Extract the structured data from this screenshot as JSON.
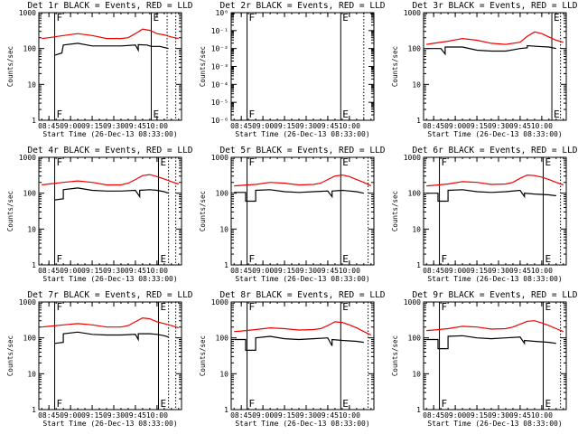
{
  "figure": {
    "background": "#ffffff",
    "axis_color": "#000000"
  },
  "colors": {
    "events": "#000000",
    "lld": "#ee0000",
    "marker": "#000000"
  },
  "chart_data": [
    {
      "type": "line",
      "title": "Det 1r BLACK = Events, RED = LLD",
      "xlabel": "Start Time (26-Dec-13 08:33:00)",
      "ylabel": "Counts/sec",
      "log_y": true,
      "ylim": [
        1,
        1000
      ],
      "yticks": [
        "1",
        "10",
        "100",
        "1000"
      ],
      "xlim": [
        "08:38",
        "10:17"
      ],
      "xticks": [
        "08:45",
        "09:00",
        "09:15",
        "09:30",
        "09:45",
        "10:00"
      ],
      "markers": [
        {
          "label": "F",
          "time": "08:49",
          "style": "solid"
        },
        {
          "label": "E",
          "time": "09:56",
          "style": "solid"
        },
        {
          "label": "",
          "time": "10:07",
          "style": "dotted"
        },
        {
          "label": "",
          "time": "10:13",
          "style": "dotted"
        }
      ],
      "series": [
        {
          "name": "Events",
          "color": "black",
          "x": [
            "08:49",
            "08:54",
            "08:55",
            "09:05",
            "09:15",
            "09:25",
            "09:35",
            "09:45",
            "09:47",
            "09:47",
            "09:53",
            "09:56",
            "10:02",
            "10:08"
          ],
          "y": [
            65,
            75,
            125,
            140,
            118,
            118,
            118,
            125,
            90,
            128,
            125,
            115,
            115,
            100
          ]
        },
        {
          "name": "LLD",
          "color": "red",
          "x": [
            "08:40",
            "08:45",
            "08:55",
            "09:05",
            "09:15",
            "09:25",
            "09:35",
            "09:40",
            "09:45",
            "09:50",
            "09:55",
            "10:00",
            "10:05",
            "10:10",
            "10:15"
          ],
          "y": [
            190,
            200,
            230,
            260,
            230,
            190,
            190,
            200,
            260,
            350,
            320,
            260,
            240,
            210,
            190
          ]
        }
      ]
    },
    {
      "type": "line",
      "title": "Det 2r BLACK = Events, RED = LLD",
      "xlabel": "Start Time (26-Dec-13 08:33:00)",
      "ylabel": "Counts/sec",
      "log_y": true,
      "ylim": [
        1e-06,
        1
      ],
      "yticks": [
        "10⁻⁶",
        "10⁻⁵",
        "10⁻⁴",
        "10⁻³",
        "10⁻²",
        "10⁻¹",
        "10⁰"
      ],
      "xlim": [
        "08:38",
        "10:17"
      ],
      "xticks": [
        "08:45",
        "09:00",
        "09:15",
        "09:30",
        "09:45",
        "10:00"
      ],
      "markers": [
        {
          "label": "F",
          "time": "08:49",
          "style": "solid"
        },
        {
          "label": "E",
          "time": "09:54",
          "style": "solid"
        },
        {
          "label": "",
          "time": "10:10",
          "style": "dotted"
        }
      ],
      "series": []
    },
    {
      "type": "line",
      "title": "Det 3r BLACK = Events, RED = LLD",
      "xlabel": "Start Time (26-Dec-13 08:33:00)",
      "ylabel": "Counts/sec",
      "log_y": true,
      "ylim": [
        1,
        1000
      ],
      "yticks": [
        "1",
        "10",
        "100",
        "1000"
      ],
      "xlim": [
        "08:38",
        "10:17"
      ],
      "xticks": [
        "08:45",
        "09:00",
        "09:15",
        "09:30",
        "09:45",
        "10:00"
      ],
      "markers": [
        {
          "label": "E",
          "time": "10:07",
          "style": "solid"
        },
        {
          "label": "",
          "time": "10:13",
          "style": "dotted"
        }
      ],
      "series": [
        {
          "name": "Events",
          "color": "black",
          "x": [
            "08:40",
            "08:50",
            "08:53",
            "08:53",
            "09:05",
            "09:15",
            "09:25",
            "09:35",
            "09:45",
            "09:50",
            "09:50",
            "09:57",
            "10:05",
            "10:10"
          ],
          "y": [
            100,
            100,
            70,
            110,
            110,
            90,
            85,
            85,
            100,
            105,
            120,
            115,
            110,
            100
          ]
        },
        {
          "name": "LLD",
          "color": "red",
          "x": [
            "08:40",
            "08:45",
            "08:55",
            "09:05",
            "09:15",
            "09:25",
            "09:35",
            "09:45",
            "09:50",
            "09:55",
            "10:00",
            "10:05",
            "10:10",
            "10:15"
          ],
          "y": [
            130,
            140,
            160,
            190,
            170,
            140,
            130,
            150,
            220,
            290,
            260,
            210,
            170,
            150
          ]
        }
      ]
    },
    {
      "type": "line",
      "title": "Det 4r BLACK = Events, RED = LLD",
      "xlabel": "Start Time (26-Dec-13 08:33:00)",
      "ylabel": "Counts/sec",
      "log_y": true,
      "ylim": [
        1,
        1000
      ],
      "yticks": [
        "1",
        "10",
        "100",
        "1000"
      ],
      "xlim": [
        "08:38",
        "10:17"
      ],
      "xticks": [
        "08:45",
        "09:00",
        "09:15",
        "09:30",
        "09:45",
        "10:00"
      ],
      "markers": [
        {
          "label": "F",
          "time": "08:49",
          "style": "solid"
        },
        {
          "label": "E",
          "time": "10:01",
          "style": "solid"
        },
        {
          "label": "",
          "time": "10:08",
          "style": "dotted"
        },
        {
          "label": "",
          "time": "10:13",
          "style": "dotted"
        }
      ],
      "series": [
        {
          "name": "Events",
          "color": "black",
          "x": [
            "08:49",
            "08:55",
            "08:55",
            "09:05",
            "09:15",
            "09:25",
            "09:35",
            "09:45",
            "09:48",
            "09:48",
            "09:55",
            "10:00",
            "10:05",
            "10:08"
          ],
          "y": [
            65,
            70,
            125,
            140,
            120,
            115,
            115,
            120,
            80,
            120,
            125,
            120,
            110,
            100
          ]
        },
        {
          "name": "LLD",
          "color": "red",
          "x": [
            "08:40",
            "08:45",
            "08:55",
            "09:05",
            "09:15",
            "09:25",
            "09:35",
            "09:40",
            "09:45",
            "09:50",
            "09:55",
            "10:00",
            "10:05",
            "10:10",
            "10:15"
          ],
          "y": [
            170,
            180,
            200,
            220,
            200,
            170,
            170,
            190,
            240,
            310,
            330,
            290,
            250,
            210,
            180
          ]
        }
      ]
    },
    {
      "type": "line",
      "title": "Det 5r BLACK = Events, RED = LLD",
      "xlabel": "Start Time (26-Dec-13 08:33:00)",
      "ylabel": "Counts/sec",
      "log_y": true,
      "ylim": [
        1,
        1000
      ],
      "yticks": [
        "1",
        "10",
        "100",
        "1000"
      ],
      "xlim": [
        "08:38",
        "10:17"
      ],
      "xticks": [
        "08:45",
        "09:00",
        "09:15",
        "09:30",
        "09:45",
        "10:00"
      ],
      "markers": [
        {
          "label": "F",
          "time": "08:49",
          "style": "solid"
        },
        {
          "label": "E",
          "time": "09:54",
          "style": "solid"
        },
        {
          "label": "",
          "time": "10:13",
          "style": "dotted"
        }
      ],
      "series": [
        {
          "name": "Events",
          "color": "black",
          "x": [
            "08:40",
            "08:48",
            "08:48",
            "08:55",
            "08:55",
            "09:05",
            "09:15",
            "09:25",
            "09:35",
            "09:45",
            "09:48",
            "09:48",
            "09:55",
            "10:05",
            "10:10"
          ],
          "y": [
            105,
            105,
            60,
            60,
            120,
            125,
            110,
            105,
            110,
            115,
            80,
            115,
            120,
            110,
            100
          ]
        },
        {
          "name": "LLD",
          "color": "red",
          "x": [
            "08:40",
            "08:45",
            "08:55",
            "09:05",
            "09:15",
            "09:25",
            "09:35",
            "09:40",
            "09:45",
            "09:50",
            "09:55",
            "10:00",
            "10:05",
            "10:10",
            "10:15"
          ],
          "y": [
            160,
            165,
            175,
            200,
            190,
            170,
            175,
            190,
            240,
            300,
            320,
            290,
            240,
            200,
            160
          ]
        }
      ]
    },
    {
      "type": "line",
      "title": "Det 6r BLACK = Events, RED = LLD",
      "xlabel": "Start Time (26-Dec-13 08:33:00)",
      "ylabel": "Counts/sec",
      "log_y": true,
      "ylim": [
        1,
        1000
      ],
      "yticks": [
        "1",
        "10",
        "100",
        "1000"
      ],
      "xlim": [
        "08:38",
        "10:17"
      ],
      "xticks": [
        "08:45",
        "09:00",
        "09:15",
        "09:30",
        "09:45",
        "10:00"
      ],
      "markers": [
        {
          "label": "F",
          "time": "08:49",
          "style": "solid"
        },
        {
          "label": "E",
          "time": "10:01",
          "style": "solid"
        },
        {
          "label": "",
          "time": "10:13",
          "style": "dotted"
        }
      ],
      "series": [
        {
          "name": "Events",
          "color": "black",
          "x": [
            "08:40",
            "08:48",
            "08:48",
            "08:55",
            "08:55",
            "09:05",
            "09:15",
            "09:25",
            "09:35",
            "09:45",
            "09:48",
            "09:48",
            "09:55",
            "10:05",
            "10:10"
          ],
          "y": [
            100,
            100,
            60,
            60,
            120,
            125,
            110,
            105,
            110,
            120,
            80,
            100,
            95,
            90,
            85
          ]
        },
        {
          "name": "LLD",
          "color": "red",
          "x": [
            "08:40",
            "08:45",
            "08:55",
            "09:05",
            "09:15",
            "09:25",
            "09:35",
            "09:40",
            "09:45",
            "09:50",
            "09:55",
            "10:00",
            "10:05",
            "10:10",
            "10:15"
          ],
          "y": [
            160,
            165,
            180,
            210,
            200,
            175,
            180,
            200,
            260,
            320,
            310,
            280,
            240,
            200,
            170
          ]
        }
      ]
    },
    {
      "type": "line",
      "title": "Det 7r BLACK = Events, RED = LLD",
      "xlabel": "Start Time (26-Dec-13 08:33:00)",
      "ylabel": "Counts/sec",
      "log_y": true,
      "ylim": [
        1,
        1000
      ],
      "yticks": [
        "1",
        "10",
        "100",
        "1000"
      ],
      "xlim": [
        "08:38",
        "10:17"
      ],
      "xticks": [
        "08:45",
        "09:00",
        "09:15",
        "09:30",
        "09:45",
        "10:00"
      ],
      "markers": [
        {
          "label": "F",
          "time": "08:49",
          "style": "solid"
        },
        {
          "label": "E",
          "time": "10:01",
          "style": "solid"
        },
        {
          "label": "",
          "time": "10:08",
          "style": "dotted"
        },
        {
          "label": "",
          "time": "10:13",
          "style": "dotted"
        }
      ],
      "series": [
        {
          "name": "Events",
          "color": "black",
          "x": [
            "08:49",
            "08:55",
            "08:55",
            "09:05",
            "09:15",
            "09:25",
            "09:35",
            "09:45",
            "09:47",
            "09:47",
            "09:55",
            "10:00",
            "10:05",
            "10:08"
          ],
          "y": [
            70,
            75,
            130,
            145,
            125,
            120,
            120,
            125,
            90,
            130,
            130,
            125,
            115,
            105
          ]
        },
        {
          "name": "LLD",
          "color": "red",
          "x": [
            "08:40",
            "08:45",
            "08:55",
            "09:05",
            "09:15",
            "09:25",
            "09:35",
            "09:40",
            "09:45",
            "09:50",
            "09:55",
            "10:00",
            "10:05",
            "10:10",
            "10:15"
          ],
          "y": [
            200,
            210,
            230,
            250,
            230,
            200,
            200,
            220,
            280,
            360,
            340,
            280,
            250,
            220,
            190
          ]
        }
      ]
    },
    {
      "type": "line",
      "title": "Det 8r BLACK = Events, RED = LLD",
      "xlabel": "Start Time (26-Dec-13 08:33:00)",
      "ylabel": "Counts/sec",
      "log_y": true,
      "ylim": [
        1,
        1000
      ],
      "yticks": [
        "1",
        "10",
        "100",
        "1000"
      ],
      "xlim": [
        "08:38",
        "10:17"
      ],
      "xticks": [
        "08:45",
        "09:00",
        "09:15",
        "09:30",
        "09:45",
        "10:00"
      ],
      "markers": [
        {
          "label": "F",
          "time": "08:49",
          "style": "solid"
        },
        {
          "label": "E",
          "time": "09:54",
          "style": "solid"
        },
        {
          "label": "",
          "time": "10:13",
          "style": "dotted"
        }
      ],
      "series": [
        {
          "name": "Events",
          "color": "black",
          "x": [
            "08:40",
            "08:48",
            "08:48",
            "08:55",
            "08:55",
            "09:05",
            "09:15",
            "09:25",
            "09:35",
            "09:45",
            "09:48",
            "09:48",
            "09:55",
            "10:05",
            "10:10"
          ],
          "y": [
            90,
            90,
            45,
            45,
            100,
            110,
            95,
            90,
            95,
            100,
            60,
            90,
            85,
            80,
            75
          ]
        },
        {
          "name": "LLD",
          "color": "red",
          "x": [
            "08:40",
            "08:45",
            "08:55",
            "09:05",
            "09:15",
            "09:25",
            "09:35",
            "09:40",
            "09:45",
            "09:50",
            "09:55",
            "10:00",
            "10:05",
            "10:10",
            "10:15"
          ],
          "y": [
            150,
            155,
            170,
            190,
            180,
            165,
            170,
            180,
            220,
            280,
            270,
            230,
            190,
            150,
            120
          ]
        }
      ]
    },
    {
      "type": "line",
      "title": "Det 9r BLACK = Events, RED = LLD",
      "xlabel": "Start Time (26-Dec-13 08:33:00)",
      "ylabel": "Counts/sec",
      "log_y": true,
      "ylim": [
        1,
        1000
      ],
      "yticks": [
        "1",
        "10",
        "100",
        "1000"
      ],
      "xlim": [
        "08:38",
        "10:17"
      ],
      "xticks": [
        "08:45",
        "09:00",
        "09:15",
        "09:30",
        "09:45",
        "10:00"
      ],
      "markers": [
        {
          "label": "F",
          "time": "08:49",
          "style": "solid"
        },
        {
          "label": "E",
          "time": "10:01",
          "style": "solid"
        },
        {
          "label": "",
          "time": "10:13",
          "style": "dotted"
        }
      ],
      "series": [
        {
          "name": "Events",
          "color": "black",
          "x": [
            "08:40",
            "08:48",
            "08:48",
            "08:55",
            "08:55",
            "09:05",
            "09:15",
            "09:25",
            "09:35",
            "09:45",
            "09:48",
            "09:48",
            "09:55",
            "10:05",
            "10:10"
          ],
          "y": [
            90,
            90,
            50,
            50,
            110,
            115,
            100,
            95,
            100,
            105,
            70,
            85,
            80,
            75,
            70
          ]
        },
        {
          "name": "LLD",
          "color": "red",
          "x": [
            "08:40",
            "08:45",
            "08:55",
            "09:05",
            "09:15",
            "09:25",
            "09:35",
            "09:40",
            "09:45",
            "09:50",
            "09:55",
            "10:00",
            "10:05",
            "10:10",
            "10:15"
          ],
          "y": [
            160,
            165,
            180,
            210,
            200,
            175,
            180,
            200,
            240,
            290,
            300,
            260,
            220,
            180,
            150
          ]
        }
      ]
    }
  ]
}
